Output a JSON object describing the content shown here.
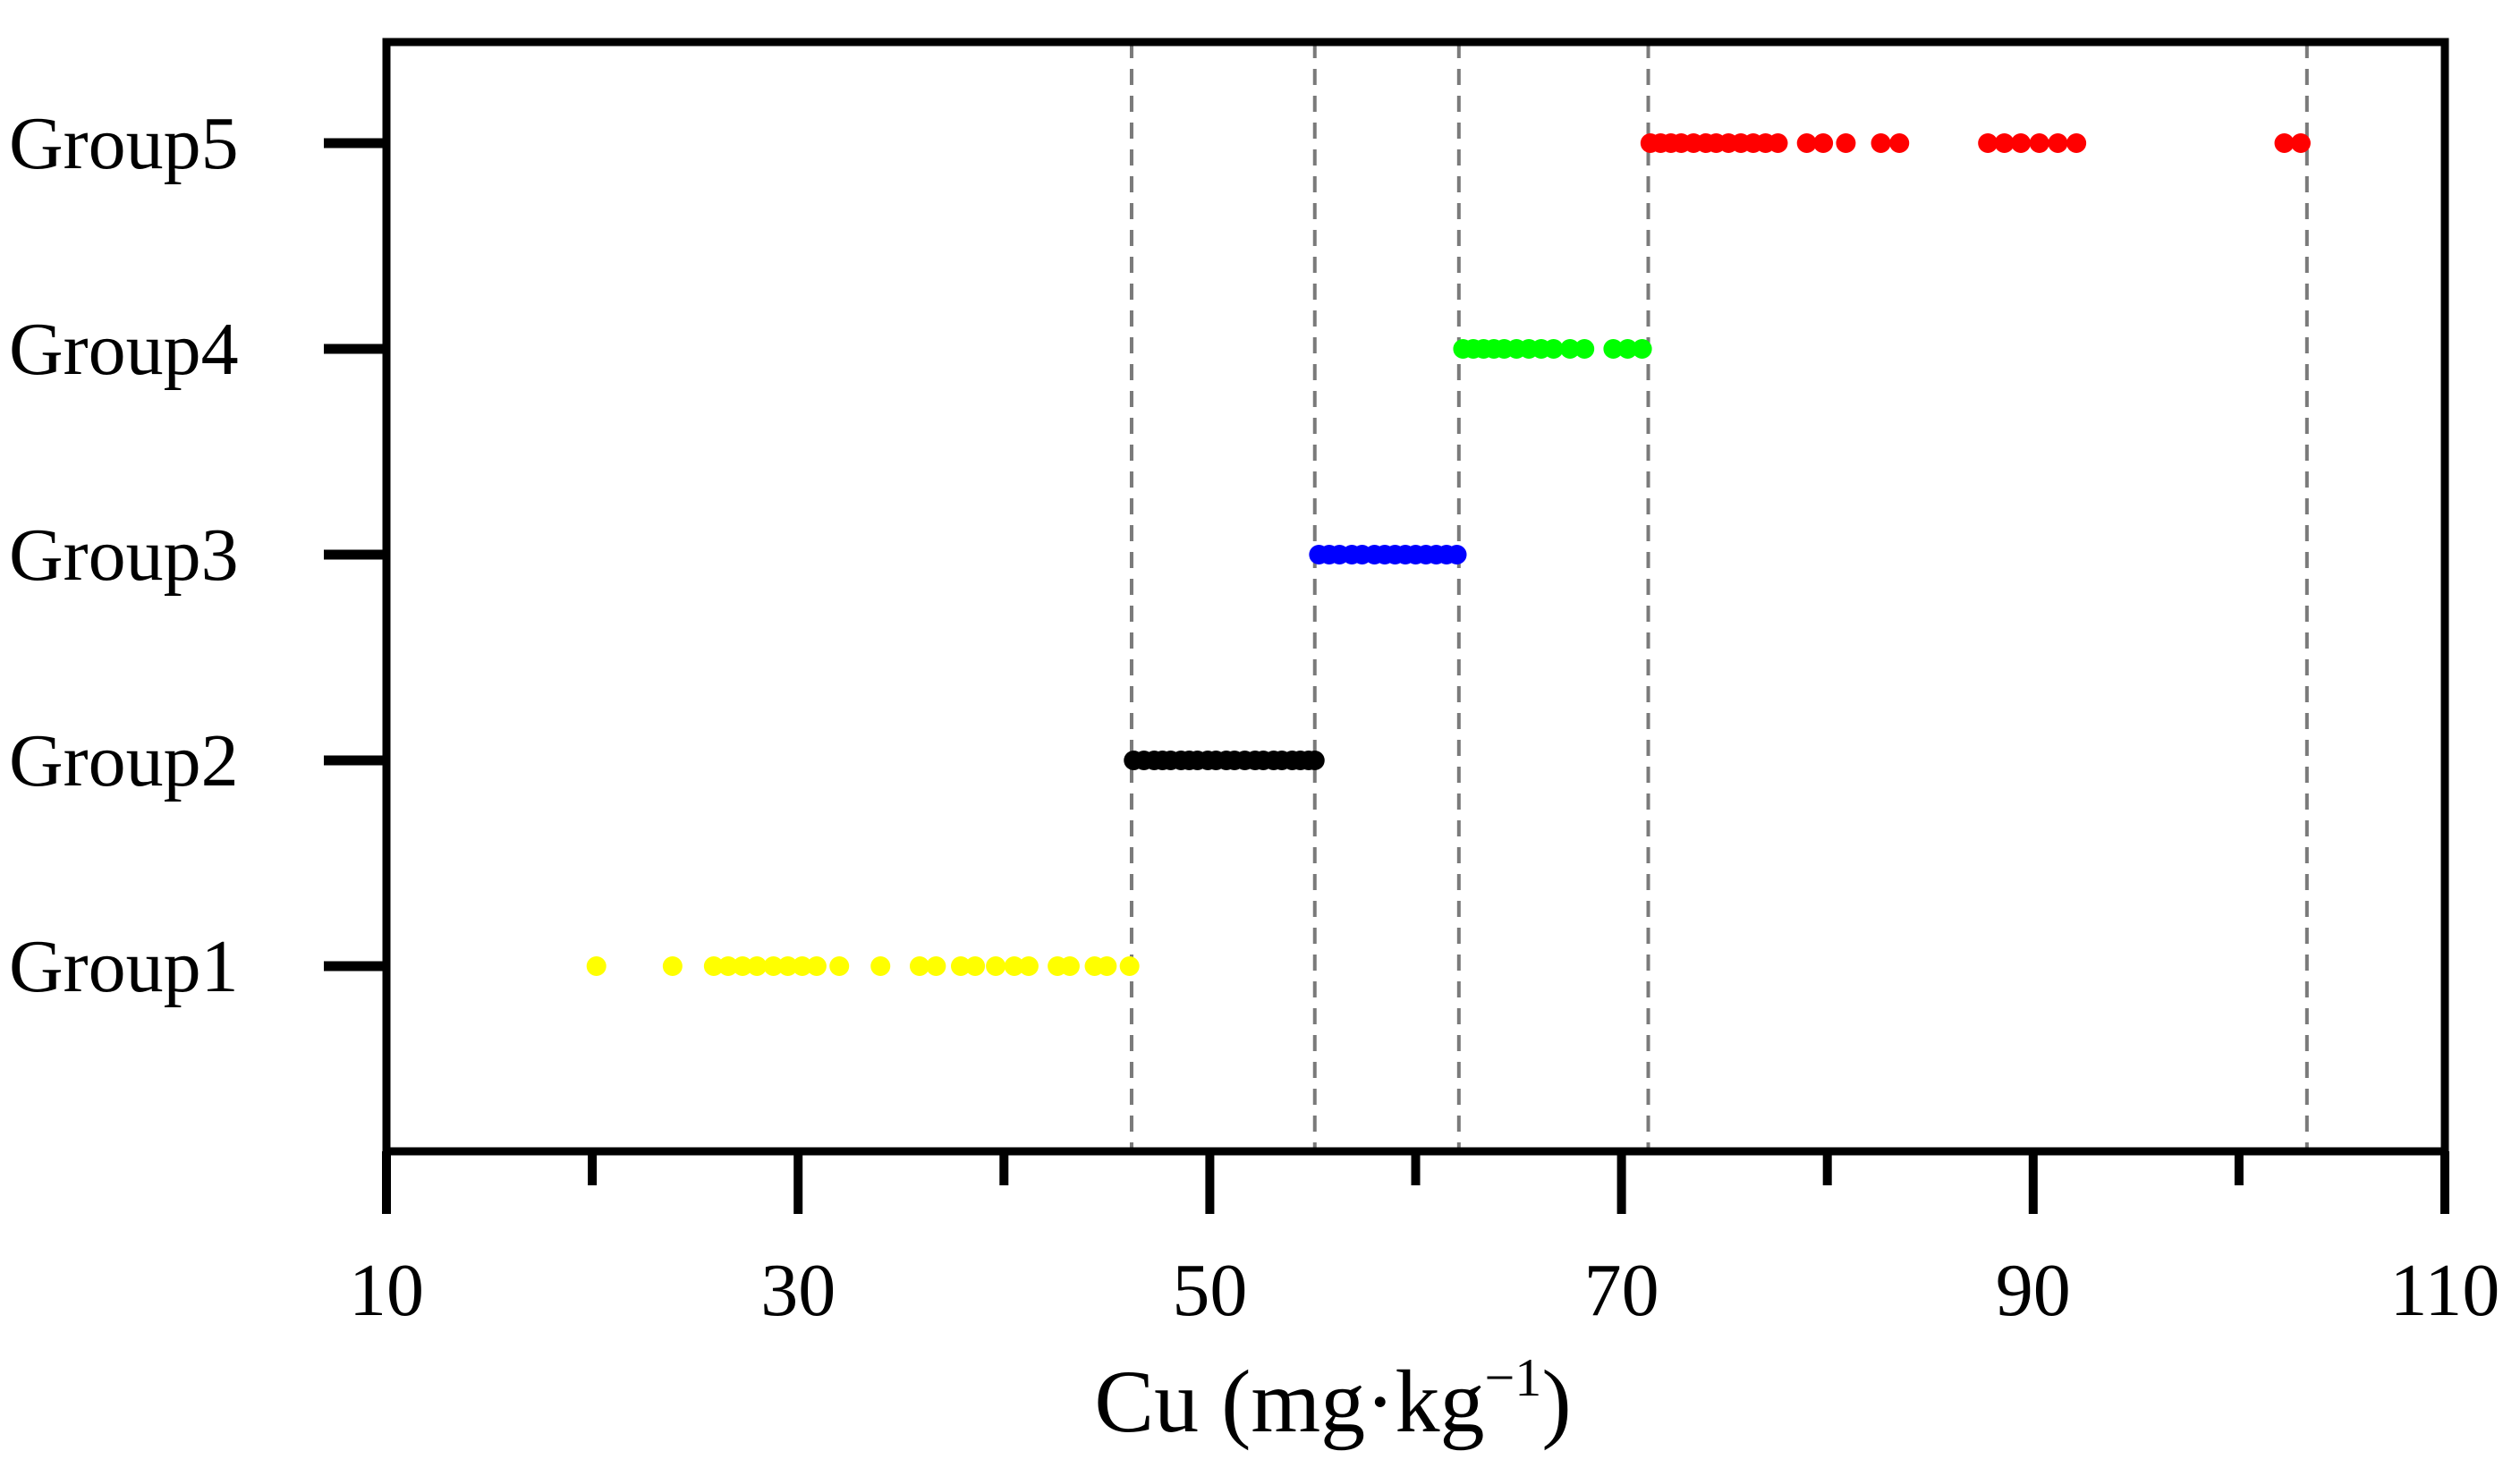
{
  "chart_data": {
    "type": "scatter",
    "xlabel": "Cu (mg·kg",
    "xlabel_sup": "−1",
    "xlabel_close": ")",
    "xlim": [
      10,
      110
    ],
    "xticks_major": [
      10,
      30,
      50,
      70,
      90,
      110
    ],
    "xticks_minor": [
      20,
      40,
      60,
      80,
      100
    ],
    "xtick_labels": [
      "10",
      "30",
      "50",
      "70",
      "90",
      "110"
    ],
    "categories": [
      "Group1",
      "Group2",
      "Group3",
      "Group4",
      "Group5"
    ],
    "thresholds": [
      46.2,
      55.1,
      62.1,
      71.3,
      103.3
    ],
    "series": [
      {
        "name": "Group1",
        "color": "#ffff00",
        "x": [
          20.2,
          23.9,
          25.9,
          26.6,
          27.3,
          28.0,
          28.8,
          29.5,
          30.2,
          30.9,
          32.0,
          34.0,
          35.9,
          36.7,
          37.9,
          38.6,
          39.6,
          40.5,
          41.2,
          42.6,
          43.2,
          44.4,
          45.0,
          46.1
        ]
      },
      {
        "name": "Group2",
        "color": "#000000",
        "x": [
          46.3,
          46.8,
          47.3,
          47.7,
          48.1,
          48.6,
          49.0,
          49.4,
          49.9,
          50.3,
          50.8,
          51.2,
          51.7,
          52.2,
          52.6,
          53.1,
          53.5,
          54.0,
          54.4,
          54.8,
          55.1
        ]
      },
      {
        "name": "Group3",
        "color": "#0000ff",
        "x": [
          55.3,
          55.8,
          56.3,
          56.9,
          57.4,
          58.0,
          58.5,
          59.0,
          59.5,
          60.0,
          60.5,
          61.0,
          61.5,
          62.0
        ]
      },
      {
        "name": "Group4",
        "color": "#00ff00",
        "x": [
          62.3,
          62.8,
          63.3,
          63.8,
          64.3,
          64.9,
          65.5,
          66.1,
          66.7,
          67.5,
          68.2,
          69.6,
          70.3,
          71.0
        ]
      },
      {
        "name": "Group5",
        "color": "#ff0000",
        "x": [
          71.4,
          71.9,
          72.4,
          72.9,
          73.5,
          74.1,
          74.6,
          75.2,
          75.8,
          76.4,
          77.0,
          77.6,
          79.0,
          79.8,
          80.9,
          82.6,
          83.5,
          87.8,
          88.6,
          89.4,
          90.3,
          91.2,
          92.1,
          102.2,
          103.0
        ]
      }
    ]
  }
}
